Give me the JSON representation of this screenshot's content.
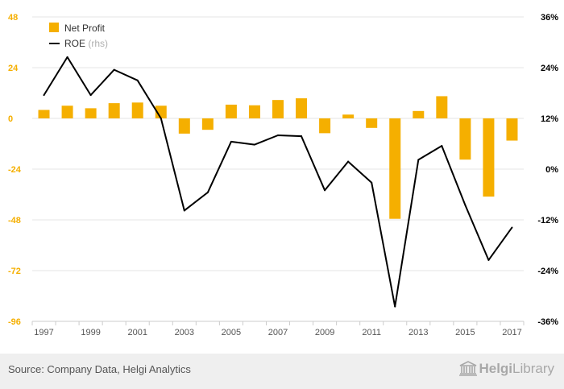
{
  "chart_data": {
    "type": "bar+line",
    "years": [
      1997,
      1998,
      1999,
      2000,
      2001,
      2002,
      2003,
      2004,
      2005,
      2006,
      2007,
      2008,
      2009,
      2010,
      2011,
      2012,
      2013,
      2014,
      2015,
      2016,
      2017
    ],
    "x_tick_labels": [
      "1997",
      "1999",
      "2001",
      "2003",
      "2005",
      "2007",
      "2009",
      "2011",
      "2013",
      "2015",
      "2017"
    ],
    "series": [
      {
        "name": "Net Profit",
        "type": "bar",
        "axis": "left",
        "color": "#F5AF00",
        "values": [
          4,
          6,
          4.8,
          7.2,
          7.5,
          6,
          -7.2,
          -5.4,
          6.5,
          6.2,
          8.7,
          9.5,
          -7,
          1.8,
          -4.5,
          -47.5,
          3.5,
          10.5,
          -19.5,
          -37,
          -10.5
        ]
      },
      {
        "name": "ROE",
        "suffix": "(rhs)",
        "type": "line",
        "axis": "right",
        "color": "#000000",
        "values": [
          17.5,
          26.5,
          17.5,
          23.5,
          21,
          12,
          -9.8,
          -5.5,
          6.5,
          5.8,
          8,
          7.8,
          -5,
          1.8,
          -3.2,
          -32.5,
          2.2,
          5.5,
          -8.5,
          -21.5,
          -13.8
        ]
      }
    ],
    "left_axis": {
      "min": -96,
      "max": 48,
      "ticks": [
        "48",
        "24",
        "0",
        "-24",
        "-48",
        "-72",
        "-96"
      ],
      "color": "#F5AF00"
    },
    "right_axis": {
      "min": -36,
      "max": 36,
      "ticks": [
        "36%",
        "24%",
        "12%",
        "0%",
        "-12%",
        "-24%",
        "-36%"
      ],
      "color": "#000000"
    },
    "grid": true,
    "legend_position": "top-left"
  },
  "footer": {
    "source": "Source: Company Data, Helgi Analytics",
    "logo_part1": "Helgi",
    "logo_part2": "Library"
  }
}
